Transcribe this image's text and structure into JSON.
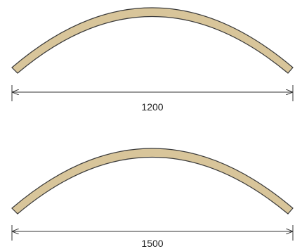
{
  "colors": {
    "arch_fill": "#d8c59a",
    "arch_stroke": "#3a3a3a",
    "dimension_line": "#333333"
  },
  "arches": [
    {
      "dimension_label": "1200"
    },
    {
      "dimension_label": "1500"
    }
  ]
}
